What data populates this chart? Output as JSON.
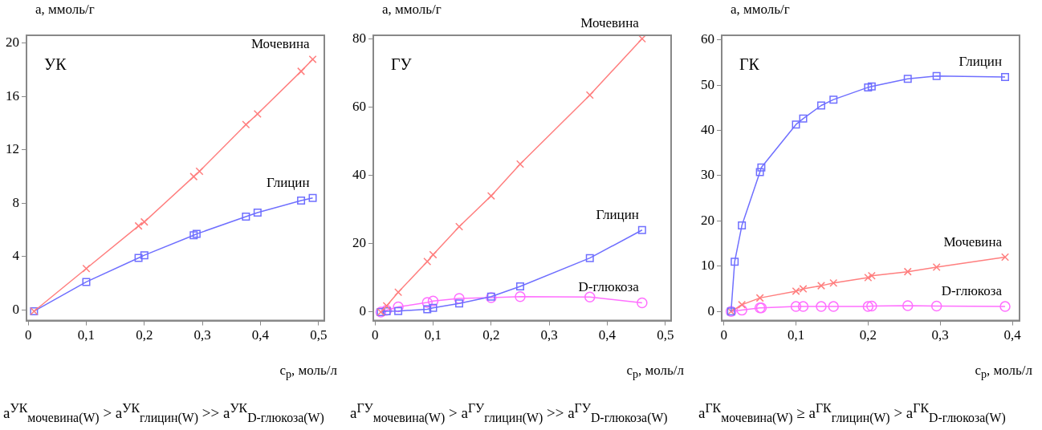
{
  "chart_data": [
    {
      "type": "line",
      "title": "УК",
      "xlabel": "c$_{р}$, моль/л",
      "ylabel": "a, ммоль/г",
      "xlim": [
        -0.003,
        0.51
      ],
      "ylim": [
        -0.8,
        20.6
      ],
      "xticks": [
        {
          "value": 0,
          "label": "0"
        },
        {
          "value": 0.1,
          "label": "0,1"
        },
        {
          "value": 0.2,
          "label": "0,2"
        },
        {
          "value": 0.3,
          "label": "0,3"
        },
        {
          "value": 0.4,
          "label": "0,4"
        },
        {
          "value": 0.5,
          "label": "0,5"
        }
      ],
      "yticks": [
        0,
        4,
        8,
        12,
        16,
        20
      ],
      "annotations": [
        "a$^{УК}$$_{мочевина(W)}$ > a$^{УК}$$_{глицин(W)}$ >> a$^{УК}$$_{D-глюкоза(W)}$"
      ],
      "series": [
        {
          "name": "Мочевина",
          "color": "#ff7f7f",
          "marker": "cross",
          "x": [
            0.01,
            0.1,
            0.19,
            0.2,
            0.285,
            0.295,
            0.375,
            0.395,
            0.47,
            0.49
          ],
          "values": [
            -0.1,
            3.1,
            6.3,
            6.6,
            10.0,
            10.4,
            13.9,
            14.7,
            17.9,
            18.8
          ]
        },
        {
          "name": "Глицин",
          "color": "#6f6fff",
          "marker": "square",
          "x": [
            0.01,
            0.1,
            0.19,
            0.2,
            0.285,
            0.29,
            0.375,
            0.395,
            0.47,
            0.49
          ],
          "values": [
            -0.1,
            2.1,
            3.9,
            4.1,
            5.6,
            5.7,
            7.0,
            7.3,
            8.2,
            8.4
          ]
        }
      ]
    },
    {
      "type": "line",
      "title": "ГУ",
      "xlabel": "c$_{р}$, моль/л",
      "ylabel": "a, ммоль/г",
      "xlim": [
        -0.003,
        0.51
      ],
      "ylim": [
        -2.5,
        81
      ],
      "xticks": [
        {
          "value": 0,
          "label": "0"
        },
        {
          "value": 0.1,
          "label": "0,1"
        },
        {
          "value": 0.2,
          "label": "0,2"
        },
        {
          "value": 0.3,
          "label": "0,3"
        },
        {
          "value": 0.4,
          "label": "0,4"
        },
        {
          "value": 0.5,
          "label": "0,5"
        }
      ],
      "yticks": [
        0,
        20,
        40,
        60,
        80
      ],
      "annotations": [
        "a$^{ГУ}$$_{мочевина(W)}$ > a$^{ГУ}$$_{глицин(W)}$ >> a$^{ГУ}$$_{D-глюкоза(W)}$"
      ],
      "series": [
        {
          "name": "Мочевина",
          "color": "#ff7f7f",
          "marker": "cross",
          "x": [
            0.01,
            0.02,
            0.04,
            0.09,
            0.1,
            0.145,
            0.2,
            0.25,
            0.37,
            0.46
          ],
          "values": [
            0,
            1.8,
            5.8,
            14.8,
            16.8,
            25,
            34,
            43.3,
            63.5,
            80
          ]
        },
        {
          "name": "Глицин",
          "color": "#6f6fff",
          "marker": "square",
          "x": [
            0.01,
            0.02,
            0.04,
            0.09,
            0.1,
            0.145,
            0.2,
            0.25,
            0.37,
            0.46
          ],
          "values": [
            0,
            0.2,
            0.3,
            0.8,
            1.2,
            2.5,
            4.5,
            7.5,
            15.8,
            24
          ]
        },
        {
          "name": "D-глюкоза",
          "color": "#ff6fff",
          "marker": "circle",
          "x": [
            0.01,
            0.02,
            0.04,
            0.09,
            0.1,
            0.145,
            0.2,
            0.25,
            0.37,
            0.46
          ],
          "values": [
            0,
            0.5,
            1.5,
            2.8,
            3.2,
            4.0,
            4.2,
            4.5,
            4.4,
            2.7
          ]
        }
      ]
    },
    {
      "type": "line",
      "title": "ГК",
      "xlabel": "c$_{р}$, моль/л",
      "ylabel": "a, ммоль/г",
      "xlim": [
        -0.003,
        0.41
      ],
      "ylim": [
        -2,
        61
      ],
      "xticks": [
        {
          "value": 0,
          "label": "0"
        },
        {
          "value": 0.1,
          "label": "0,1"
        },
        {
          "value": 0.2,
          "label": "0,2"
        },
        {
          "value": 0.3,
          "label": "0,3"
        },
        {
          "value": 0.4,
          "label": "0,4"
        }
      ],
      "yticks": [
        0,
        10,
        20,
        30,
        40,
        50,
        60
      ],
      "annotations": [
        "a$^{ГК}$$_{мочевина(W)}$ ≥ a$^{ГК}$$_{глицин(W)}$ > a$^{ГК}$$_{D-глюкоза(W)}$"
      ],
      "series": [
        {
          "name": "Глицин",
          "color": "#6f6fff",
          "marker": "square",
          "x": [
            0.01,
            0.015,
            0.025,
            0.05,
            0.052,
            0.1,
            0.11,
            0.135,
            0.152,
            0.2,
            0.205,
            0.255,
            0.295,
            0.39
          ],
          "values": [
            0,
            11,
            19,
            30.8,
            31.8,
            41.3,
            42.6,
            45.5,
            46.8,
            49.5,
            49.7,
            51.4,
            52,
            51.8
          ]
        },
        {
          "name": "Мочевина",
          "color": "#ff7f7f",
          "marker": "cross",
          "x": [
            0.01,
            0.025,
            0.05,
            0.1,
            0.11,
            0.135,
            0.152,
            0.2,
            0.205,
            0.255,
            0.295,
            0.39
          ],
          "values": [
            0,
            1.5,
            3,
            4.5,
            5,
            5.7,
            6.3,
            7.5,
            7.9,
            8.8,
            9.8,
            12
          ]
        },
        {
          "name": "D-глюкоза",
          "color": "#ff6fff",
          "marker": "circle",
          "x": [
            0.01,
            0.025,
            0.05,
            0.052,
            0.1,
            0.11,
            0.135,
            0.152,
            0.2,
            0.205,
            0.255,
            0.295,
            0.39
          ],
          "values": [
            0,
            0.3,
            0.8,
            0.8,
            1.1,
            1.1,
            1.1,
            1.1,
            1.1,
            1.2,
            1.3,
            1.2,
            1.1
          ]
        }
      ]
    }
  ]
}
